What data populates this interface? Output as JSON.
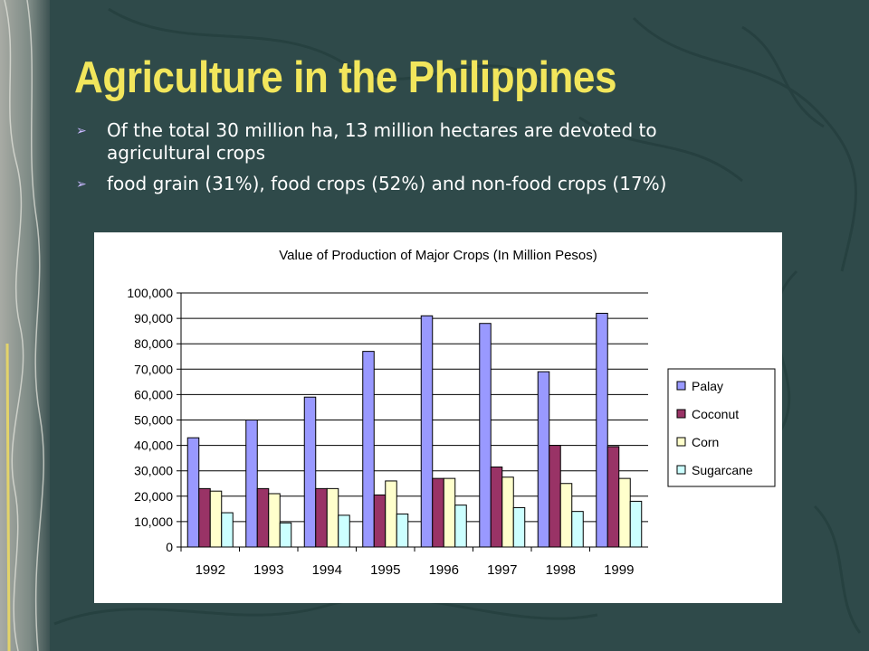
{
  "slide": {
    "title": "Agriculture in the Philippines",
    "bullets": [
      "Of the total 30 million ha, 13 million hectares are devoted to agricultural crops",
      "food grain (31%), food crops (52%) and non-food crops (17%)"
    ],
    "bullet_icon": "arrowhead-bullet-icon"
  },
  "colors": {
    "background": "#2f4a4a",
    "title": "#f2e65c",
    "palay": "#9999ff",
    "coconut": "#993366",
    "corn": "#ffffcc",
    "sugarcane": "#ccffff"
  },
  "chart_data": {
    "type": "bar",
    "title": "Value of Production of Major Crops (In Million Pesos)",
    "categories": [
      "1992",
      "1993",
      "1994",
      "1995",
      "1996",
      "1997",
      "1998",
      "1999"
    ],
    "series": [
      {
        "name": "Palay",
        "color": "#9999ff",
        "values": [
          43000,
          50000,
          59000,
          77000,
          91000,
          88000,
          69000,
          92000
        ]
      },
      {
        "name": "Coconut",
        "color": "#993366",
        "values": [
          23000,
          23000,
          23000,
          20500,
          27000,
          31500,
          40000,
          39500
        ]
      },
      {
        "name": "Corn",
        "color": "#ffffcc",
        "values": [
          22000,
          21000,
          23000,
          26000,
          27000,
          27500,
          25000,
          27000
        ]
      },
      {
        "name": "Sugarcane",
        "color": "#ccffff",
        "values": [
          13500,
          9500,
          12500,
          13000,
          16500,
          15500,
          14000,
          18000
        ]
      }
    ],
    "ylim": [
      0,
      100000
    ],
    "yticks": [
      "0",
      "10,000",
      "20,000",
      "30,000",
      "40,000",
      "50,000",
      "60,000",
      "70,000",
      "80,000",
      "90,000",
      "100,000"
    ],
    "grid": true,
    "legend": "right"
  }
}
